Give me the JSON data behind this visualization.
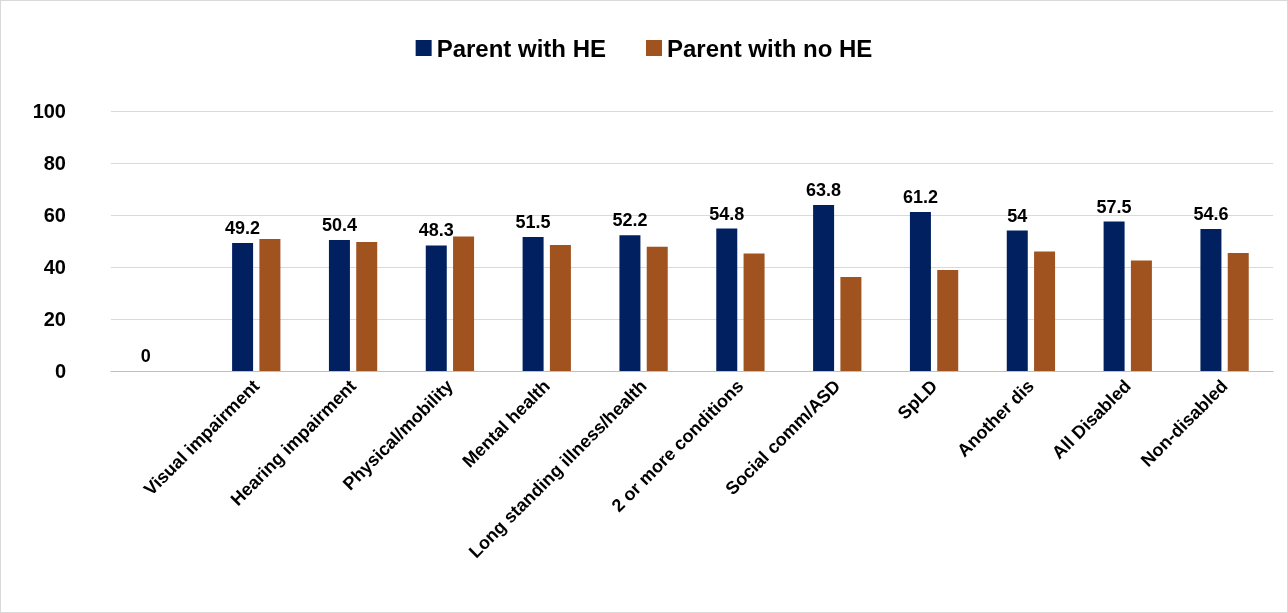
{
  "chart_data": {
    "type": "bar",
    "categories": [
      null,
      "Visual impairment",
      "Hearing impairment",
      "Physical/mobility",
      "Mental health",
      "Long standing illness/health",
      "2 or more conditions",
      "Social comm/ASD",
      "SpLD",
      "Another dis",
      "All Disabled",
      "Non-disabled"
    ],
    "series": [
      {
        "name": "Parent with HE",
        "color": "#002060",
        "values": [
          0,
          49.2,
          50.4,
          48.3,
          51.5,
          52.2,
          54.8,
          63.8,
          61.2,
          54,
          57.5,
          54.6
        ],
        "value_labels": [
          "0",
          "49.2",
          "50.4",
          "48.3",
          "51.5",
          "52.2",
          "54.8",
          "63.8",
          "61.2",
          "54",
          "57.5",
          "54.6"
        ]
      },
      {
        "name": "Parent with no HE",
        "color": "#a0521f",
        "values": [
          null,
          50.8,
          49.6,
          51.7,
          48.5,
          47.8,
          45.2,
          36.2,
          38.8,
          46,
          42.5,
          45.4
        ]
      }
    ],
    "ylim": [
      0,
      100
    ],
    "yticks": [
      0,
      20,
      40,
      60,
      80,
      100
    ],
    "grid": "y",
    "legend": "top"
  }
}
